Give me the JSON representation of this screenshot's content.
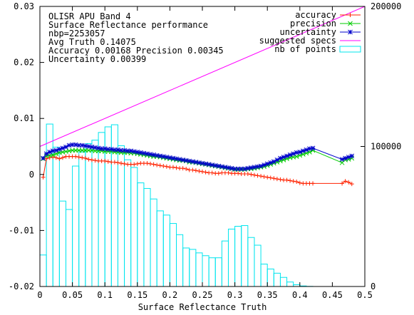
{
  "chart_data": {
    "type": "line",
    "info_lines": [
      "OLISR APU Band 4",
      "Surface Reflectance performance",
      "nbp=2253057",
      "Avg Truth 0.14075",
      "Accuracy 0.00168 Precision 0.00345",
      "Uncertainty 0.00399"
    ],
    "xlabel": "Surface Reflectance Truth",
    "xlim": [
      0,
      0.5
    ],
    "ylim": [
      -0.02,
      0.03
    ],
    "y2lim": [
      0,
      200000
    ],
    "x_ticks": [
      "0",
      "0.05",
      "0.1",
      "0.15",
      "0.2",
      "0.25",
      "0.3",
      "0.35",
      "0.4",
      "0.45",
      "0.5"
    ],
    "x_tick_values": [
      0,
      0.05,
      0.1,
      0.15,
      0.2,
      0.25,
      0.3,
      0.35,
      0.4,
      0.45,
      0.5
    ],
    "y_ticks": [
      "-0.02",
      "-0.01",
      "0",
      "0.01",
      "0.02",
      "0.03"
    ],
    "y_tick_values": [
      -0.02,
      -0.01,
      0,
      0.01,
      0.02,
      0.03
    ],
    "y2_ticks": [
      "0",
      "100000",
      "200000"
    ],
    "y2_tick_values": [
      0,
      100000,
      200000
    ],
    "series": [
      {
        "name": "accuracy",
        "color": "#ff2200",
        "marker": "plus",
        "x": [
          0.005,
          0.01,
          0.015,
          0.02,
          0.025,
          0.03,
          0.035,
          0.04,
          0.045,
          0.05,
          0.055,
          0.06,
          0.065,
          0.07,
          0.075,
          0.08,
          0.085,
          0.09,
          0.095,
          0.1,
          0.105,
          0.11,
          0.115,
          0.12,
          0.125,
          0.13,
          0.135,
          0.14,
          0.145,
          0.15,
          0.155,
          0.16,
          0.165,
          0.17,
          0.175,
          0.18,
          0.185,
          0.19,
          0.195,
          0.2,
          0.205,
          0.21,
          0.215,
          0.22,
          0.225,
          0.23,
          0.235,
          0.24,
          0.245,
          0.25,
          0.255,
          0.26,
          0.265,
          0.27,
          0.275,
          0.28,
          0.285,
          0.29,
          0.295,
          0.3,
          0.305,
          0.31,
          0.315,
          0.32,
          0.325,
          0.33,
          0.335,
          0.34,
          0.345,
          0.35,
          0.355,
          0.36,
          0.365,
          0.37,
          0.375,
          0.38,
          0.385,
          0.39,
          0.395,
          0.4,
          0.405,
          0.41,
          0.415,
          0.42,
          0.465,
          0.47,
          0.475,
          0.48
        ],
        "values": [
          -0.0005,
          0.0028,
          0.003,
          0.0031,
          0.003,
          0.0028,
          0.003,
          0.0032,
          0.0032,
          0.0032,
          0.0032,
          0.0031,
          0.003,
          0.0029,
          0.0027,
          0.0026,
          0.0025,
          0.0024,
          0.0024,
          0.0024,
          0.0023,
          0.0022,
          0.0022,
          0.0021,
          0.002,
          0.0019,
          0.0018,
          0.0018,
          0.0018,
          0.0019,
          0.002,
          0.002,
          0.002,
          0.0019,
          0.0018,
          0.0017,
          0.0016,
          0.0015,
          0.0014,
          0.0013,
          0.0013,
          0.0012,
          0.0011,
          0.0011,
          0.001,
          0.0008,
          0.0008,
          0.0007,
          0.0006,
          0.0005,
          0.0004,
          0.0003,
          0.0003,
          0.0002,
          0.0002,
          0.0003,
          0.0003,
          0.0003,
          0.0002,
          0.0002,
          0.0002,
          0.0001,
          0.0001,
          0.0001,
          0.0,
          -0.0001,
          -0.0002,
          -0.0003,
          -0.0004,
          -0.0005,
          -0.0006,
          -0.0007,
          -0.0008,
          -0.0009,
          -0.001,
          -0.001,
          -0.0011,
          -0.0012,
          -0.0013,
          -0.0015,
          -0.0016,
          -0.0016,
          -0.0016,
          -0.0016,
          -0.0016,
          -0.0012,
          -0.0014,
          -0.0017
        ]
      },
      {
        "name": "precision",
        "color": "#00cc00",
        "marker": "cross",
        "x": [
          0.005,
          0.01,
          0.015,
          0.02,
          0.025,
          0.03,
          0.035,
          0.04,
          0.045,
          0.05,
          0.055,
          0.06,
          0.065,
          0.07,
          0.075,
          0.08,
          0.085,
          0.09,
          0.095,
          0.1,
          0.105,
          0.11,
          0.115,
          0.12,
          0.125,
          0.13,
          0.135,
          0.14,
          0.145,
          0.15,
          0.155,
          0.16,
          0.165,
          0.17,
          0.175,
          0.18,
          0.185,
          0.19,
          0.195,
          0.2,
          0.205,
          0.21,
          0.215,
          0.22,
          0.225,
          0.23,
          0.235,
          0.24,
          0.245,
          0.25,
          0.255,
          0.26,
          0.265,
          0.27,
          0.275,
          0.28,
          0.285,
          0.29,
          0.295,
          0.3,
          0.305,
          0.31,
          0.315,
          0.32,
          0.325,
          0.33,
          0.335,
          0.34,
          0.345,
          0.35,
          0.355,
          0.36,
          0.365,
          0.37,
          0.375,
          0.38,
          0.385,
          0.39,
          0.395,
          0.4,
          0.405,
          0.41,
          0.415,
          0.42,
          0.465,
          0.47,
          0.475,
          0.48
        ],
        "values": [
          0.0028,
          0.0033,
          0.0034,
          0.0035,
          0.0037,
          0.0039,
          0.004,
          0.0041,
          0.0042,
          0.0043,
          0.0043,
          0.0043,
          0.0043,
          0.0043,
          0.0043,
          0.0043,
          0.0042,
          0.0042,
          0.0042,
          0.0041,
          0.0041,
          0.0041,
          0.004,
          0.004,
          0.0039,
          0.0039,
          0.0039,
          0.0038,
          0.0038,
          0.0037,
          0.0036,
          0.0035,
          0.0034,
          0.0033,
          0.0032,
          0.0032,
          0.0031,
          0.003,
          0.0029,
          0.0028,
          0.0027,
          0.0026,
          0.0025,
          0.0025,
          0.0024,
          0.0022,
          0.0022,
          0.0021,
          0.002,
          0.0019,
          0.0018,
          0.0017,
          0.0016,
          0.0015,
          0.0014,
          0.0013,
          0.0012,
          0.0011,
          0.001,
          0.0009,
          0.0009,
          0.0009,
          0.0009,
          0.001,
          0.001,
          0.0011,
          0.0012,
          0.0013,
          0.0014,
          0.0016,
          0.0018,
          0.002,
          0.0022,
          0.0024,
          0.0026,
          0.0028,
          0.003,
          0.0031,
          0.0032,
          0.0034,
          0.0036,
          0.0038,
          0.004,
          0.0043,
          0.0021,
          0.0026,
          0.0027,
          0.0029
        ]
      },
      {
        "name": "uncertainty",
        "color": "#0000cc",
        "marker": "star",
        "x": [
          0.005,
          0.01,
          0.015,
          0.02,
          0.025,
          0.03,
          0.035,
          0.04,
          0.045,
          0.05,
          0.055,
          0.06,
          0.065,
          0.07,
          0.075,
          0.08,
          0.085,
          0.09,
          0.095,
          0.1,
          0.105,
          0.11,
          0.115,
          0.12,
          0.125,
          0.13,
          0.135,
          0.14,
          0.145,
          0.15,
          0.155,
          0.16,
          0.165,
          0.17,
          0.175,
          0.18,
          0.185,
          0.19,
          0.195,
          0.2,
          0.205,
          0.21,
          0.215,
          0.22,
          0.225,
          0.23,
          0.235,
          0.24,
          0.245,
          0.25,
          0.255,
          0.26,
          0.265,
          0.27,
          0.275,
          0.28,
          0.285,
          0.29,
          0.295,
          0.3,
          0.305,
          0.31,
          0.315,
          0.32,
          0.325,
          0.33,
          0.335,
          0.34,
          0.345,
          0.35,
          0.355,
          0.36,
          0.365,
          0.37,
          0.375,
          0.38,
          0.385,
          0.39,
          0.395,
          0.4,
          0.405,
          0.41,
          0.415,
          0.42,
          0.465,
          0.47,
          0.475,
          0.48
        ],
        "values": [
          0.0029,
          0.0037,
          0.004,
          0.0042,
          0.0043,
          0.0045,
          0.0047,
          0.0049,
          0.0052,
          0.0053,
          0.0053,
          0.0052,
          0.0052,
          0.0051,
          0.005,
          0.0049,
          0.0048,
          0.0047,
          0.0046,
          0.0046,
          0.0045,
          0.0045,
          0.0044,
          0.0044,
          0.0043,
          0.0043,
          0.0042,
          0.0042,
          0.0041,
          0.004,
          0.0039,
          0.0038,
          0.0037,
          0.0036,
          0.0035,
          0.0034,
          0.0033,
          0.0032,
          0.0031,
          0.003,
          0.0029,
          0.0028,
          0.0027,
          0.0026,
          0.0025,
          0.0024,
          0.0023,
          0.0022,
          0.0021,
          0.002,
          0.0019,
          0.0018,
          0.0017,
          0.0016,
          0.0015,
          0.0014,
          0.0013,
          0.0012,
          0.0011,
          0.001,
          0.001,
          0.001,
          0.001,
          0.0011,
          0.0012,
          0.0013,
          0.0014,
          0.0015,
          0.0017,
          0.0019,
          0.0021,
          0.0023,
          0.0026,
          0.0029,
          0.0031,
          0.0033,
          0.0035,
          0.0037,
          0.0039,
          0.004,
          0.0042,
          0.0044,
          0.0046,
          0.0047,
          0.0027,
          0.0029,
          0.0031,
          0.0033
        ]
      },
      {
        "name": "suggested specs",
        "color": "#ff00ff",
        "marker": "none",
        "x": [
          0,
          0.5
        ],
        "values": [
          0.005,
          0.03
        ]
      }
    ],
    "histogram": {
      "name": "nb of points",
      "color": "#00e5ee",
      "axis": "y2",
      "bin_width": 0.01,
      "x": [
        0.005,
        0.015,
        0.025,
        0.035,
        0.045,
        0.055,
        0.065,
        0.075,
        0.085,
        0.095,
        0.105,
        0.115,
        0.125,
        0.135,
        0.145,
        0.155,
        0.165,
        0.175,
        0.185,
        0.195,
        0.205,
        0.215,
        0.225,
        0.235,
        0.245,
        0.255,
        0.265,
        0.275,
        0.285,
        0.295,
        0.305,
        0.315,
        0.325,
        0.335,
        0.345,
        0.355,
        0.365,
        0.375,
        0.385,
        0.395,
        0.405,
        0.415
      ],
      "values": [
        22500,
        116000,
        99500,
        61000,
        55000,
        86000,
        96000,
        102000,
        104500,
        110000,
        114000,
        115500,
        100500,
        90500,
        85000,
        74000,
        70000,
        62500,
        54000,
        51000,
        45000,
        37000,
        27500,
        26500,
        24000,
        22000,
        20500,
        20500,
        32500,
        41000,
        43000,
        43500,
        35000,
        29500,
        16000,
        12500,
        9500,
        6500,
        3200,
        1300,
        400,
        100
      ]
    },
    "legend": {
      "placement": "top-right",
      "entries": [
        "accuracy",
        "precision",
        "uncertainty",
        "suggested specs",
        "nb of points"
      ]
    },
    "grid": false
  }
}
